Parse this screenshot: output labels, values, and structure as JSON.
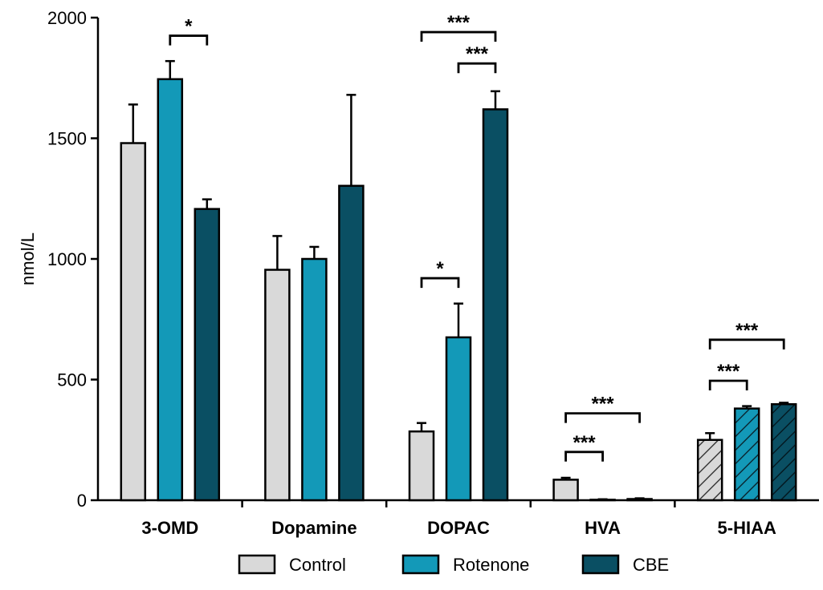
{
  "chart_data": {
    "type": "bar",
    "title": "",
    "xlabel": "",
    "ylabel": "nmol/L",
    "ylim": [
      0,
      2000
    ],
    "yticks": [
      0,
      500,
      1000,
      1500,
      2000
    ],
    "grid": false,
    "legend_position": "bottom",
    "categories": [
      "3-OMD",
      "Dopamine",
      "DOPAC",
      "HVA",
      "5-HIAA"
    ],
    "series": [
      {
        "name": "Control",
        "color": "#d9d9d9",
        "values": [
          1480,
          955,
          285,
          85,
          250
        ],
        "errors": [
          160,
          140,
          35,
          8,
          28
        ]
      },
      {
        "name": "Rotenone",
        "color": "#1399b8",
        "values": [
          1745,
          1000,
          675,
          2,
          380
        ],
        "errors": [
          75,
          50,
          140,
          2,
          10
        ]
      },
      {
        "name": "CBE",
        "color": "#0a4f63",
        "values": [
          1207,
          1303,
          1620,
          5,
          398
        ],
        "errors": [
          40,
          377,
          75,
          3,
          6
        ]
      }
    ],
    "hatched_categories": [
      "5-HIAA"
    ],
    "significance": [
      {
        "category": "3-OMD",
        "from": 1,
        "to": 2,
        "y": 1925,
        "label": "*"
      },
      {
        "category": "DOPAC",
        "from": 0,
        "to": 2,
        "y": 1940,
        "label": "***"
      },
      {
        "category": "DOPAC",
        "from": 1,
        "to": 2,
        "y": 1810,
        "label": "***"
      },
      {
        "category": "DOPAC",
        "from": 0,
        "to": 1,
        "y": 920,
        "label": "*"
      },
      {
        "category": "HVA",
        "from": 0,
        "to": 2,
        "y": 360,
        "label": "***"
      },
      {
        "category": "HVA",
        "from": 0,
        "to": 1,
        "y": 200,
        "label": "***"
      },
      {
        "category": "5-HIAA",
        "from": 0,
        "to": 2,
        "y": 665,
        "label": "***"
      },
      {
        "category": "5-HIAA",
        "from": 0,
        "to": 1,
        "y": 495,
        "label": "***"
      }
    ]
  }
}
